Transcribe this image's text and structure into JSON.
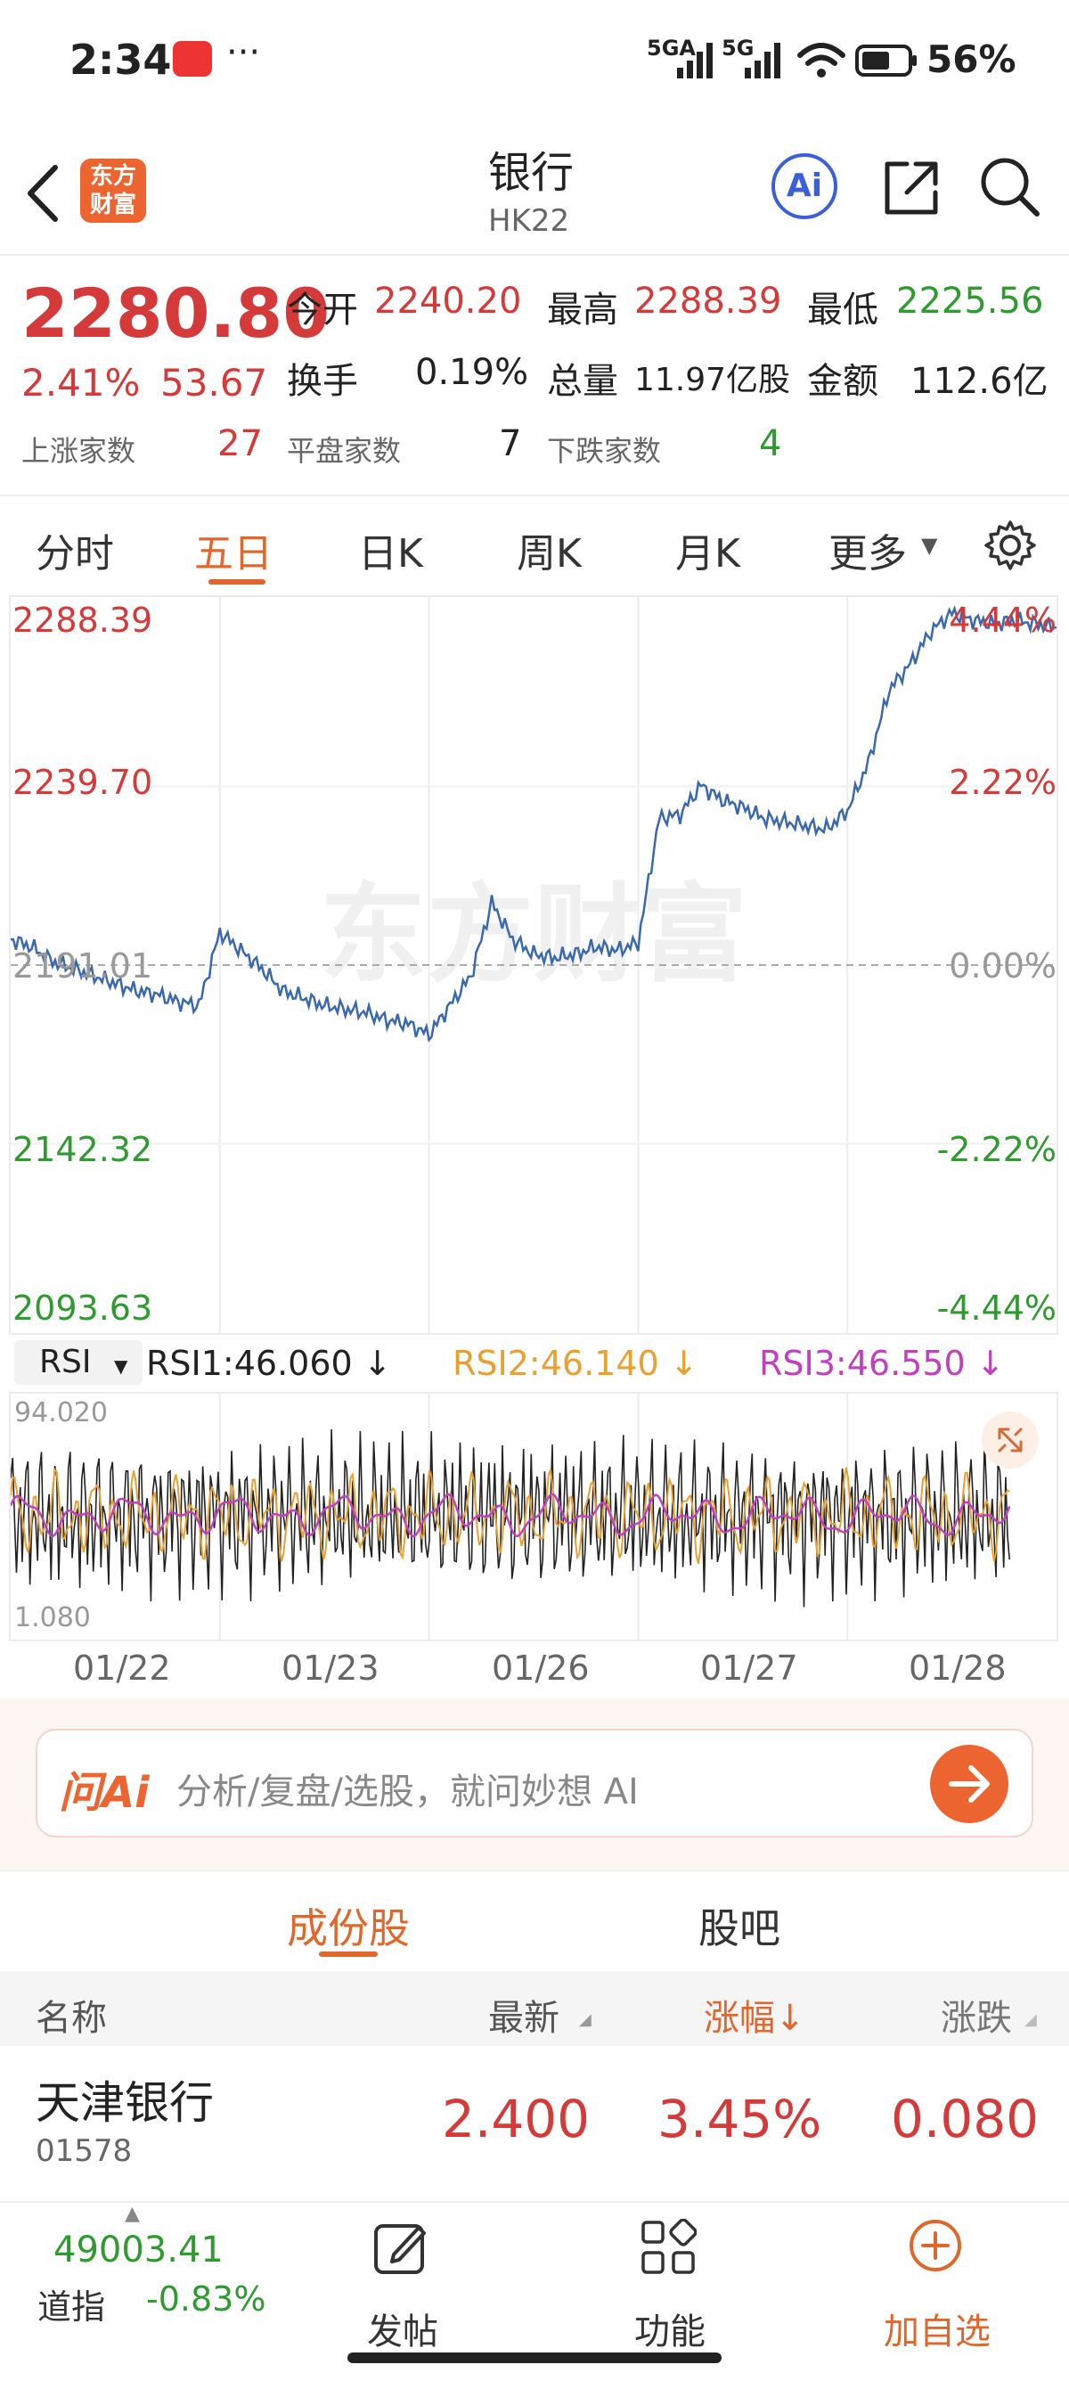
{
  "status_bar": {
    "time": "2:34",
    "signal1": "5GA",
    "signal2": "5G",
    "battery": "56%"
  },
  "header": {
    "title": "银行",
    "code": "HK22",
    "logo_line1": "东方",
    "logo_line2": "财富"
  },
  "quote": {
    "price": "2280.80",
    "change_pct": "2.41%",
    "change": "53.67",
    "stats": [
      {
        "label": "今开",
        "value": "2240.20"
      },
      {
        "label": "最高",
        "value": "2288.39"
      },
      {
        "label": "最低",
        "value": "2225.56"
      },
      {
        "label": "换手",
        "value": "0.19%"
      },
      {
        "label": "总量",
        "value": "11.97亿股"
      },
      {
        "label": "金额",
        "value": "112.6亿"
      }
    ],
    "breadth": [
      {
        "label": "上涨家数",
        "value": "27"
      },
      {
        "label": "平盘家数",
        "value": "7"
      },
      {
        "label": "下跌家数",
        "value": "4"
      }
    ]
  },
  "tabs": [
    "分时",
    "五日",
    "日K",
    "周K",
    "月K",
    "更多"
  ],
  "chart_data": [
    {
      "type": "line",
      "title": "",
      "y_left_ticks": [
        "2288.39",
        "2239.70",
        "2191.01",
        "2142.32",
        "2093.63"
      ],
      "y_right_ticks": [
        "4.44%",
        "2.22%",
        "0.00%",
        "-2.22%",
        "-4.44%"
      ],
      "ylim": [
        2093.63,
        2288.39
      ],
      "baseline": 2191.01,
      "x_days": [
        "01/22",
        "01/23",
        "01/26",
        "01/27",
        "01/28"
      ],
      "series": [
        {
          "color": "#3a68b0",
          "x": [
            0.0,
            0.1,
            0.2,
            0.3,
            0.4,
            0.5,
            0.6,
            0.7,
            0.8,
            0.9,
            1.0,
            1.1,
            1.2,
            1.3,
            1.4,
            1.5,
            1.6,
            1.7,
            1.8,
            1.9,
            2.0,
            2.1,
            2.2,
            2.3,
            2.4,
            2.5,
            2.6,
            2.7,
            2.8,
            2.9,
            3.0,
            3.1,
            3.2,
            3.3,
            3.4,
            3.5,
            3.6,
            3.7,
            3.8,
            3.9,
            4.0,
            4.1,
            4.2,
            4.3,
            4.4,
            4.5,
            4.6,
            4.7,
            4.8,
            4.9,
            5.0
          ],
          "y": [
            2198,
            2196,
            2192,
            2190,
            2188,
            2186,
            2184,
            2183,
            2181,
            2180,
            2200,
            2195,
            2190,
            2184,
            2182,
            2180,
            2179,
            2178,
            2176,
            2175,
            2172,
            2180,
            2188,
            2208,
            2198,
            2194,
            2193,
            2194,
            2196,
            2195,
            2197,
            2231,
            2232,
            2240,
            2236,
            2234,
            2231,
            2230,
            2229,
            2228,
            2233,
            2246,
            2266,
            2273,
            2282,
            2287,
            2285,
            2284,
            2285,
            2284,
            2283
          ]
        }
      ]
    },
    {
      "type": "line",
      "title": "RSI",
      "ylim": [
        1.08,
        94.02
      ],
      "y_ticks": [
        "94.020",
        "1.080"
      ],
      "x_days": [
        "01/22",
        "01/23",
        "01/26",
        "01/27",
        "01/28"
      ],
      "series": [
        {
          "name": "RSI1",
          "value": "46.060",
          "color": "#222222"
        },
        {
          "name": "RSI2",
          "value": "46.140",
          "color": "#e8a030"
        },
        {
          "name": "RSI3",
          "value": "46.550",
          "color": "#c040c0"
        }
      ]
    }
  ],
  "rsi_bar": {
    "selector": "RSI",
    "rsi1": "RSI1:46.060 ↓",
    "rsi2": "RSI2:46.140 ↓",
    "rsi3": "RSI3:46.550 ↓"
  },
  "ai_search": {
    "brand": "问Ai",
    "placeholder": "分析/复盘/选股，就问妙想 AI"
  },
  "section_tabs": [
    "成份股",
    "股吧"
  ],
  "list": {
    "headers": [
      "名称",
      "最新",
      "涨幅↓",
      "涨跌"
    ],
    "rows": [
      {
        "name": "天津银行",
        "code": "01578",
        "latest": "2.400",
        "pct": "3.45%",
        "chg": "0.080"
      }
    ]
  },
  "bottom_nav": {
    "index_value": "49003.41",
    "index_name": "道指",
    "index_change": "-0.83%",
    "items": [
      "发帖",
      "功能",
      "加自选"
    ]
  },
  "watermark": "东方财富",
  "colors": {
    "accent": "#e0672b",
    "up": "#d43a3a",
    "down": "#2f9a2f",
    "line": "#3a68b0"
  }
}
